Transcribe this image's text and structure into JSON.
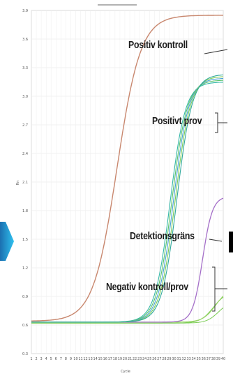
{
  "chart_data": {
    "type": "line",
    "title": "",
    "xlabel": "Cycle",
    "ylabel": "Rn",
    "x_ticks": [
      1,
      2,
      3,
      4,
      5,
      6,
      7,
      8,
      9,
      10,
      11,
      12,
      13,
      14,
      15,
      16,
      17,
      18,
      19,
      20,
      21,
      22,
      23,
      24,
      25,
      26,
      27,
      28,
      29,
      30,
      31,
      32,
      33,
      34,
      35,
      36,
      37,
      38,
      39,
      40
    ],
    "y_ticks": [
      "0.3",
      "0.6",
      "0.9",
      "1.2",
      "1.5",
      "1.8",
      "2.1",
      "2.4",
      "2.7",
      "3.0",
      "3.3",
      "3.6",
      "3.9"
    ],
    "xlim": [
      1,
      40
    ],
    "ylim": [
      0.3,
      3.9
    ],
    "grid": true,
    "series_colors": {
      "positive_control": "#c8876e",
      "positive_sample": [
        "#36b8a8",
        "#5cc46a",
        "#4aa0d8",
        "#7ccd55",
        "#2fa89c"
      ],
      "detection_limit": "#a46ec8",
      "negative": [
        "#7ccd55",
        "#9ad46a"
      ]
    }
  },
  "annotations": {
    "positive_control": "Positiv kontroll",
    "positive_sample": "Positivt prov",
    "detection_limit": "Detektionsgräns",
    "negative": "Negativ kontroll/prov"
  },
  "left_arrow_color": "#2aa7e0"
}
